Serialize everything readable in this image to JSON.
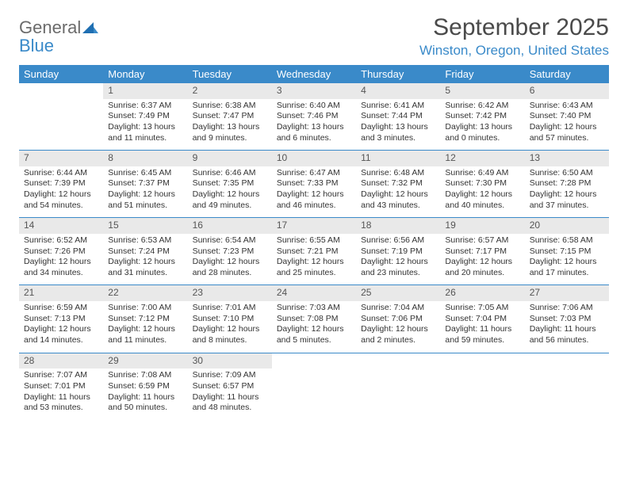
{
  "logo": {
    "general": "General",
    "blue": "Blue"
  },
  "title": "September 2025",
  "location": "Winston, Oregon, United States",
  "colors": {
    "header_bg": "#3a8ac9",
    "header_text": "#ffffff",
    "daynum_bg": "#e9e9e9",
    "text": "#333333",
    "logo_gray": "#6b6b6b",
    "logo_blue": "#3a8ac9",
    "rule": "#3a8ac9"
  },
  "weekdays": [
    "Sunday",
    "Monday",
    "Tuesday",
    "Wednesday",
    "Thursday",
    "Friday",
    "Saturday"
  ],
  "weeks": [
    [
      {
        "n": "",
        "sr": "",
        "ss": "",
        "dl": ""
      },
      {
        "n": "1",
        "sr": "Sunrise: 6:37 AM",
        "ss": "Sunset: 7:49 PM",
        "dl": "Daylight: 13 hours and 11 minutes."
      },
      {
        "n": "2",
        "sr": "Sunrise: 6:38 AM",
        "ss": "Sunset: 7:47 PM",
        "dl": "Daylight: 13 hours and 9 minutes."
      },
      {
        "n": "3",
        "sr": "Sunrise: 6:40 AM",
        "ss": "Sunset: 7:46 PM",
        "dl": "Daylight: 13 hours and 6 minutes."
      },
      {
        "n": "4",
        "sr": "Sunrise: 6:41 AM",
        "ss": "Sunset: 7:44 PM",
        "dl": "Daylight: 13 hours and 3 minutes."
      },
      {
        "n": "5",
        "sr": "Sunrise: 6:42 AM",
        "ss": "Sunset: 7:42 PM",
        "dl": "Daylight: 13 hours and 0 minutes."
      },
      {
        "n": "6",
        "sr": "Sunrise: 6:43 AM",
        "ss": "Sunset: 7:40 PM",
        "dl": "Daylight: 12 hours and 57 minutes."
      }
    ],
    [
      {
        "n": "7",
        "sr": "Sunrise: 6:44 AM",
        "ss": "Sunset: 7:39 PM",
        "dl": "Daylight: 12 hours and 54 minutes."
      },
      {
        "n": "8",
        "sr": "Sunrise: 6:45 AM",
        "ss": "Sunset: 7:37 PM",
        "dl": "Daylight: 12 hours and 51 minutes."
      },
      {
        "n": "9",
        "sr": "Sunrise: 6:46 AM",
        "ss": "Sunset: 7:35 PM",
        "dl": "Daylight: 12 hours and 49 minutes."
      },
      {
        "n": "10",
        "sr": "Sunrise: 6:47 AM",
        "ss": "Sunset: 7:33 PM",
        "dl": "Daylight: 12 hours and 46 minutes."
      },
      {
        "n": "11",
        "sr": "Sunrise: 6:48 AM",
        "ss": "Sunset: 7:32 PM",
        "dl": "Daylight: 12 hours and 43 minutes."
      },
      {
        "n": "12",
        "sr": "Sunrise: 6:49 AM",
        "ss": "Sunset: 7:30 PM",
        "dl": "Daylight: 12 hours and 40 minutes."
      },
      {
        "n": "13",
        "sr": "Sunrise: 6:50 AM",
        "ss": "Sunset: 7:28 PM",
        "dl": "Daylight: 12 hours and 37 minutes."
      }
    ],
    [
      {
        "n": "14",
        "sr": "Sunrise: 6:52 AM",
        "ss": "Sunset: 7:26 PM",
        "dl": "Daylight: 12 hours and 34 minutes."
      },
      {
        "n": "15",
        "sr": "Sunrise: 6:53 AM",
        "ss": "Sunset: 7:24 PM",
        "dl": "Daylight: 12 hours and 31 minutes."
      },
      {
        "n": "16",
        "sr": "Sunrise: 6:54 AM",
        "ss": "Sunset: 7:23 PM",
        "dl": "Daylight: 12 hours and 28 minutes."
      },
      {
        "n": "17",
        "sr": "Sunrise: 6:55 AM",
        "ss": "Sunset: 7:21 PM",
        "dl": "Daylight: 12 hours and 25 minutes."
      },
      {
        "n": "18",
        "sr": "Sunrise: 6:56 AM",
        "ss": "Sunset: 7:19 PM",
        "dl": "Daylight: 12 hours and 23 minutes."
      },
      {
        "n": "19",
        "sr": "Sunrise: 6:57 AM",
        "ss": "Sunset: 7:17 PM",
        "dl": "Daylight: 12 hours and 20 minutes."
      },
      {
        "n": "20",
        "sr": "Sunrise: 6:58 AM",
        "ss": "Sunset: 7:15 PM",
        "dl": "Daylight: 12 hours and 17 minutes."
      }
    ],
    [
      {
        "n": "21",
        "sr": "Sunrise: 6:59 AM",
        "ss": "Sunset: 7:13 PM",
        "dl": "Daylight: 12 hours and 14 minutes."
      },
      {
        "n": "22",
        "sr": "Sunrise: 7:00 AM",
        "ss": "Sunset: 7:12 PM",
        "dl": "Daylight: 12 hours and 11 minutes."
      },
      {
        "n": "23",
        "sr": "Sunrise: 7:01 AM",
        "ss": "Sunset: 7:10 PM",
        "dl": "Daylight: 12 hours and 8 minutes."
      },
      {
        "n": "24",
        "sr": "Sunrise: 7:03 AM",
        "ss": "Sunset: 7:08 PM",
        "dl": "Daylight: 12 hours and 5 minutes."
      },
      {
        "n": "25",
        "sr": "Sunrise: 7:04 AM",
        "ss": "Sunset: 7:06 PM",
        "dl": "Daylight: 12 hours and 2 minutes."
      },
      {
        "n": "26",
        "sr": "Sunrise: 7:05 AM",
        "ss": "Sunset: 7:04 PM",
        "dl": "Daylight: 11 hours and 59 minutes."
      },
      {
        "n": "27",
        "sr": "Sunrise: 7:06 AM",
        "ss": "Sunset: 7:03 PM",
        "dl": "Daylight: 11 hours and 56 minutes."
      }
    ],
    [
      {
        "n": "28",
        "sr": "Sunrise: 7:07 AM",
        "ss": "Sunset: 7:01 PM",
        "dl": "Daylight: 11 hours and 53 minutes."
      },
      {
        "n": "29",
        "sr": "Sunrise: 7:08 AM",
        "ss": "Sunset: 6:59 PM",
        "dl": "Daylight: 11 hours and 50 minutes."
      },
      {
        "n": "30",
        "sr": "Sunrise: 7:09 AM",
        "ss": "Sunset: 6:57 PM",
        "dl": "Daylight: 11 hours and 48 minutes."
      },
      {
        "n": "",
        "sr": "",
        "ss": "",
        "dl": ""
      },
      {
        "n": "",
        "sr": "",
        "ss": "",
        "dl": ""
      },
      {
        "n": "",
        "sr": "",
        "ss": "",
        "dl": ""
      },
      {
        "n": "",
        "sr": "",
        "ss": "",
        "dl": ""
      }
    ]
  ]
}
